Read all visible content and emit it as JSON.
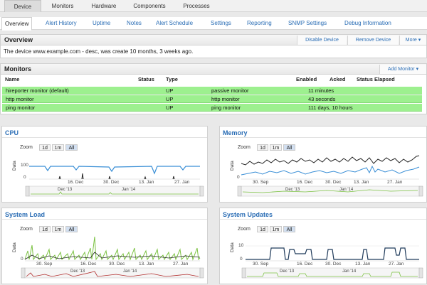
{
  "top_tabs": [
    "Device",
    "Monitors",
    "Hardware",
    "Components",
    "Processes"
  ],
  "sub_tabs": [
    "Overview",
    "Alert History",
    "Uptime",
    "Notes",
    "Alert Schedule",
    "Settings",
    "Reporting",
    "SNMP Settings",
    "Debug Information"
  ],
  "overview": {
    "title": "Overview",
    "disable_label": "Disable Device",
    "remove_label": "Remove Device",
    "more_label": "More",
    "description": "The device www.example.com - desc, was create 10 months, 3 weeks ago."
  },
  "monitors": {
    "title": "Monitors",
    "add_label": "Add Monitor",
    "columns": [
      "Name",
      "Status",
      "Type",
      "Enabled",
      "Acked",
      "Status Elapsed"
    ],
    "rows": [
      {
        "name": "hireporter monitor (default)",
        "status": "UP",
        "type": "passive monitor",
        "elapsed": "11 minutes"
      },
      {
        "name": "http monitor",
        "status": "UP",
        "type": "http monitor",
        "elapsed": "43 seconds"
      },
      {
        "name": "ping monitor",
        "status": "UP",
        "type": "ping monitor",
        "elapsed": "111 days, 10 hours"
      }
    ]
  },
  "zoom": {
    "label": "Zoom",
    "buttons": [
      "1d",
      "1m",
      "All"
    ]
  },
  "y_label": "Data",
  "colors": {
    "link": "#2a6db5",
    "row_ok": "#9df08f",
    "line_blue": "#3a8fd6",
    "line_green": "#7cc243",
    "line_dark": "#222222"
  },
  "charts": {
    "cpu": {
      "title": "CPU",
      "chart_data": {
        "type": "line",
        "y_ticks": [
          "100",
          "0"
        ],
        "x_ticks": [
          "16. Dec",
          "30. Dec",
          "13. Jan",
          "27. Jan"
        ],
        "nav_ticks": [
          "Dec '13",
          "Jan '14"
        ]
      }
    },
    "memory": {
      "title": "Memory",
      "chart_data": {
        "type": "line",
        "y_ticks": [
          "0"
        ],
        "x_ticks": [
          "30. Sep",
          "16. Dec",
          "30. Dec",
          "13. Jan",
          "27. Jan"
        ],
        "nav_ticks": [
          "Dec '13",
          "Jan '14"
        ]
      }
    },
    "load": {
      "title": "System Load",
      "chart_data": {
        "type": "line",
        "y_ticks": [
          "0"
        ],
        "x_ticks": [
          "30. Sep",
          "16. Dec",
          "30. Dec",
          "13. Jan",
          "27. Jan"
        ],
        "nav_ticks": [
          "Dec '13",
          "Jan '14"
        ]
      }
    },
    "updates": {
      "title": "System Updates",
      "chart_data": {
        "type": "line",
        "y_ticks": [
          "10",
          "0"
        ],
        "x_ticks": [
          "30. Sep",
          "16. Dec",
          "30. Dec",
          "13. Jan",
          "27. Jan"
        ],
        "nav_ticks": [
          "Dec '13",
          "Jan '14"
        ]
      }
    }
  }
}
